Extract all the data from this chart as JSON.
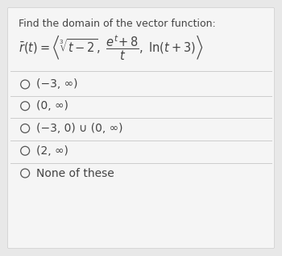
{
  "background_color": "#e8e8e8",
  "card_color": "#f5f5f5",
  "title_text": "Find the domain of the vector function:",
  "title_fontsize": 9.0,
  "formula_fontsize": 10.5,
  "option_fontsize": 10.0,
  "options": [
    "(−3, ∞)",
    "(0, ∞)",
    "(−3, 0) ∪ (0, ∞)",
    "(2, ∞)",
    "None of these"
  ],
  "text_color": "#444444",
  "line_color": "#cccccc",
  "circle_color": "#555555"
}
